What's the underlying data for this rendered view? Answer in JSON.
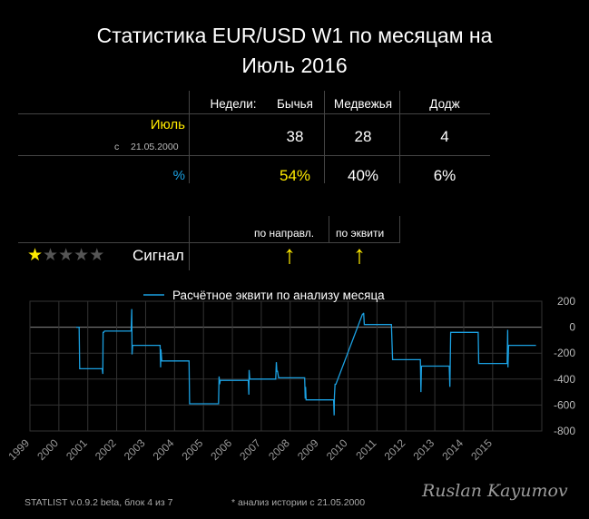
{
  "title_line1": "Статистика EUR/USD W1 по месяцам на",
  "title_line2": "Июль 2016",
  "table": {
    "headers": [
      "Недели:",
      "Бычья",
      "Медвежья",
      "Додж"
    ],
    "month_label": "Июль",
    "since_prefix": "с",
    "since_date": "21.05.2000",
    "counts": [
      "38",
      "28",
      "4"
    ],
    "percent_label": "%",
    "percents": [
      "54%",
      "40%",
      "6%"
    ]
  },
  "signal": {
    "label": "Сигнал",
    "rating": 1,
    "rating_max": 5,
    "dir_header": "по направл.",
    "equity_header": "по эквити",
    "dir_arrow": "↑",
    "equity_arrow": "↑"
  },
  "colors": {
    "accent_yellow": "#ffeb00",
    "line_cyan": "#1ba1e2",
    "background": "#000000"
  },
  "footer": {
    "version": "STATLIST v.0.9.2 beta, блок 4 из 7",
    "note": "* анализ истории с  21.05.2000",
    "signature": "Ruslan Kayumov"
  },
  "chart_data": {
    "type": "line",
    "legend": "Расчётное эквити по анализу месяца",
    "series": [
      {
        "name": "Расчётное эквити по анализу месяца",
        "x": [
          2000.6,
          2000.7,
          2000.72,
          2001.5,
          2001.52,
          2001.53,
          2001.55,
          2001.58,
          2002.5,
          2002.52,
          2002.53,
          2002.55,
          2002.57,
          2002.6,
          2003.5,
          2003.52,
          2003.53,
          2003.56,
          2003.58,
          2004.5,
          2004.52,
          2004.54,
          2004.56,
          2005.52,
          2005.54,
          2005.56,
          2005.58,
          2006.55,
          2006.57,
          2006.58,
          2006.6,
          2007.5,
          2007.52,
          2007.54,
          2007.56,
          2007.6,
          2008.5,
          2008.52,
          2008.53,
          2008.55,
          2008.57,
          2009.5,
          2009.52,
          2009.53,
          2009.55,
          2009.58,
          2010.5,
          2010.52,
          2010.54,
          2010.56,
          2011.5,
          2011.52,
          2011.54,
          2011.56,
          2012.5,
          2012.52,
          2012.54,
          2012.56,
          2013.5,
          2013.52,
          2013.55,
          2013.57,
          2014.5,
          2014.52,
          2014.54,
          2014.56,
          2015.5,
          2015.52,
          2015.53,
          2015.55,
          2016.5
        ],
        "values": [
          0,
          0,
          -320,
          -320,
          -360,
          -40,
          -40,
          -30,
          -30,
          140,
          -210,
          -140,
          -140,
          -140,
          -140,
          -310,
          -170,
          -260,
          -260,
          -260,
          -590,
          -590,
          -590,
          -590,
          -380,
          -440,
          -410,
          -410,
          -520,
          -330,
          -400,
          -400,
          -270,
          -340,
          -340,
          -390,
          -390,
          -550,
          -460,
          -560,
          -560,
          -560,
          -680,
          -530,
          -440,
          -440,
          100,
          100,
          110,
          20,
          20,
          -110,
          -250,
          -250,
          -250,
          -500,
          -300,
          -300,
          -300,
          -460,
          -40,
          -40,
          -40,
          -280,
          -280,
          -280,
          -280,
          -20,
          -310,
          -140,
          -140
        ]
      }
    ],
    "x_ticks": [
      "1999",
      "2000",
      "2001",
      "2002",
      "2003",
      "2004",
      "2005",
      "2006",
      "2007",
      "2008",
      "2009",
      "2010",
      "2011",
      "2012",
      "2013",
      "2014",
      "2015"
    ],
    "y_ticks": [
      200,
      0,
      -200,
      -400,
      -600,
      -800
    ],
    "ylim": [
      -800,
      200
    ],
    "xlim": [
      1999,
      2016.7
    ],
    "grid": true,
    "legend_position": "top-center"
  }
}
